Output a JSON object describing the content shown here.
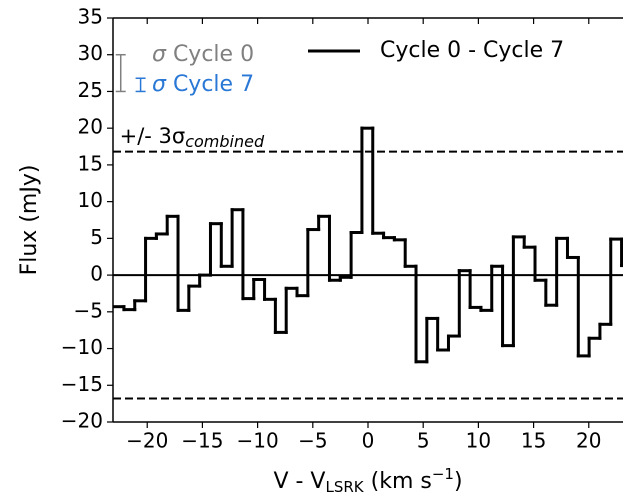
{
  "chart_data": {
    "type": "line",
    "drawstyle": "steps-mid",
    "xlabel": {
      "parts": [
        "V - V",
        "LSRK",
        " (km s",
        "−1",
        ")"
      ]
    },
    "ylabel": "Flux (mJy)",
    "x": [
      -22.6,
      -21.62,
      -20.64,
      -19.66,
      -18.68,
      -17.7,
      -16.72,
      -15.74,
      -14.76,
      -13.78,
      -12.8,
      -11.82,
      -10.84,
      -9.86,
      -8.88,
      -7.9,
      -6.92,
      -5.94,
      -4.96,
      -3.98,
      -3.0,
      -2.02,
      -1.04,
      -0.06,
      0.92,
      1.9,
      2.88,
      3.86,
      4.84,
      5.82,
      6.8,
      7.78,
      8.76,
      9.74,
      10.72,
      11.7,
      12.68,
      13.66,
      14.64,
      15.62,
      16.6,
      17.58,
      18.56,
      19.54,
      20.52,
      21.5,
      22.48,
      23.46
    ],
    "series": [
      {
        "name": "Cycle 0 - Cycle 7",
        "color": "#000000",
        "values": [
          -4.3,
          -4.7,
          -3.5,
          5.0,
          5.6,
          8.0,
          -4.8,
          -1.5,
          0,
          7.0,
          1.2,
          8.9,
          -3.2,
          -0.6,
          -3.3,
          -7.8,
          -1.8,
          -2.8,
          6.2,
          8.0,
          -0.7,
          -0.3,
          5.8,
          20.0,
          5.7,
          5.1,
          4.8,
          1.2,
          -11.8,
          -5.9,
          -10.2,
          -8.3,
          0.6,
          -4.4,
          -4.8,
          1.2,
          -9.6,
          5.2,
          3.8,
          -0.7,
          -4.1,
          5.0,
          2.4,
          -11.0,
          -8.6,
          -6.7,
          4.9,
          1.3
        ]
      }
    ],
    "xlim": [
      -23.1,
      23.1
    ],
    "ylim": [
      -20,
      35
    ],
    "xticks": [
      {
        "value": -20,
        "label": "−20"
      },
      {
        "value": -15,
        "label": "−15"
      },
      {
        "value": -10,
        "label": "−10"
      },
      {
        "value": -5,
        "label": "−5"
      },
      0,
      5,
      10,
      15,
      20
    ],
    "yticks": [
      {
        "value": -20,
        "label": "−20"
      },
      {
        "value": -15,
        "label": "−15"
      },
      {
        "value": -10,
        "label": "−10"
      },
      {
        "value": -5,
        "label": "−5"
      },
      0,
      5,
      10,
      15,
      20,
      25,
      30,
      35
    ],
    "zero_line": 0,
    "hlines": [
      16.8,
      -16.8
    ],
    "hline_style": "dashed",
    "annotation": {
      "parts": [
        "+/- 3σ",
        "combined"
      ],
      "x": -22.5,
      "y": 18.8
    },
    "error_bars": [
      {
        "label": [
          "σ",
          " Cycle 0"
        ],
        "color": "#808080",
        "x": -22.4,
        "y": 27.5,
        "err": 2.5
      },
      {
        "label": [
          "σ",
          " Cycle 7"
        ],
        "color": "#2a78d6",
        "x": -20.6,
        "y": 25.9,
        "err": 0.9
      }
    ],
    "legend": "upper right"
  }
}
